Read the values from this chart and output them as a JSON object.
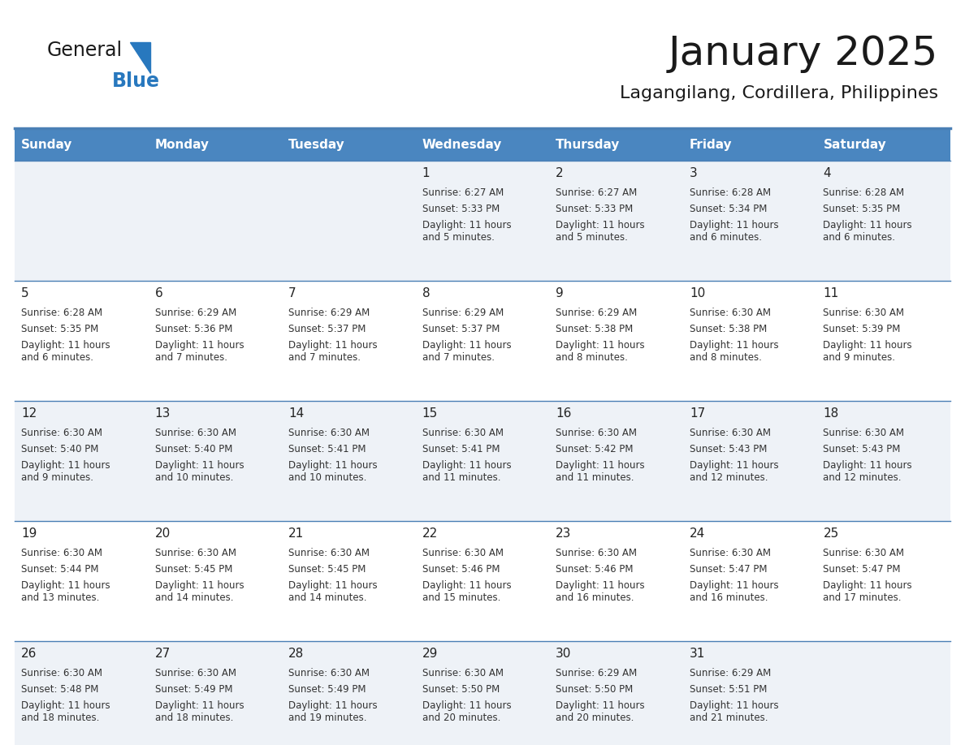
{
  "title": "January 2025",
  "subtitle": "Lagangilang, Cordillera, Philippines",
  "days_of_week": [
    "Sunday",
    "Monday",
    "Tuesday",
    "Wednesday",
    "Thursday",
    "Friday",
    "Saturday"
  ],
  "header_bg": "#4a86c0",
  "header_text": "#ffffff",
  "row_bg_odd": "#eef2f7",
  "row_bg_even": "#ffffff",
  "line_color": "#4a7fb5",
  "cell_text_color": "#333333",
  "day_number_color": "#222222",
  "calendar_data": [
    [
      null,
      null,
      null,
      {
        "day": "1",
        "sunrise": "6:27 AM",
        "sunset": "5:33 PM",
        "daylight": "11 hours\nand 5 minutes."
      },
      {
        "day": "2",
        "sunrise": "6:27 AM",
        "sunset": "5:33 PM",
        "daylight": "11 hours\nand 5 minutes."
      },
      {
        "day": "3",
        "sunrise": "6:28 AM",
        "sunset": "5:34 PM",
        "daylight": "11 hours\nand 6 minutes."
      },
      {
        "day": "4",
        "sunrise": "6:28 AM",
        "sunset": "5:35 PM",
        "daylight": "11 hours\nand 6 minutes."
      }
    ],
    [
      {
        "day": "5",
        "sunrise": "6:28 AM",
        "sunset": "5:35 PM",
        "daylight": "11 hours\nand 6 minutes."
      },
      {
        "day": "6",
        "sunrise": "6:29 AM",
        "sunset": "5:36 PM",
        "daylight": "11 hours\nand 7 minutes."
      },
      {
        "day": "7",
        "sunrise": "6:29 AM",
        "sunset": "5:37 PM",
        "daylight": "11 hours\nand 7 minutes."
      },
      {
        "day": "8",
        "sunrise": "6:29 AM",
        "sunset": "5:37 PM",
        "daylight": "11 hours\nand 7 minutes."
      },
      {
        "day": "9",
        "sunrise": "6:29 AM",
        "sunset": "5:38 PM",
        "daylight": "11 hours\nand 8 minutes."
      },
      {
        "day": "10",
        "sunrise": "6:30 AM",
        "sunset": "5:38 PM",
        "daylight": "11 hours\nand 8 minutes."
      },
      {
        "day": "11",
        "sunrise": "6:30 AM",
        "sunset": "5:39 PM",
        "daylight": "11 hours\nand 9 minutes."
      }
    ],
    [
      {
        "day": "12",
        "sunrise": "6:30 AM",
        "sunset": "5:40 PM",
        "daylight": "11 hours\nand 9 minutes."
      },
      {
        "day": "13",
        "sunrise": "6:30 AM",
        "sunset": "5:40 PM",
        "daylight": "11 hours\nand 10 minutes."
      },
      {
        "day": "14",
        "sunrise": "6:30 AM",
        "sunset": "5:41 PM",
        "daylight": "11 hours\nand 10 minutes."
      },
      {
        "day": "15",
        "sunrise": "6:30 AM",
        "sunset": "5:41 PM",
        "daylight": "11 hours\nand 11 minutes."
      },
      {
        "day": "16",
        "sunrise": "6:30 AM",
        "sunset": "5:42 PM",
        "daylight": "11 hours\nand 11 minutes."
      },
      {
        "day": "17",
        "sunrise": "6:30 AM",
        "sunset": "5:43 PM",
        "daylight": "11 hours\nand 12 minutes."
      },
      {
        "day": "18",
        "sunrise": "6:30 AM",
        "sunset": "5:43 PM",
        "daylight": "11 hours\nand 12 minutes."
      }
    ],
    [
      {
        "day": "19",
        "sunrise": "6:30 AM",
        "sunset": "5:44 PM",
        "daylight": "11 hours\nand 13 minutes."
      },
      {
        "day": "20",
        "sunrise": "6:30 AM",
        "sunset": "5:45 PM",
        "daylight": "11 hours\nand 14 minutes."
      },
      {
        "day": "21",
        "sunrise": "6:30 AM",
        "sunset": "5:45 PM",
        "daylight": "11 hours\nand 14 minutes."
      },
      {
        "day": "22",
        "sunrise": "6:30 AM",
        "sunset": "5:46 PM",
        "daylight": "11 hours\nand 15 minutes."
      },
      {
        "day": "23",
        "sunrise": "6:30 AM",
        "sunset": "5:46 PM",
        "daylight": "11 hours\nand 16 minutes."
      },
      {
        "day": "24",
        "sunrise": "6:30 AM",
        "sunset": "5:47 PM",
        "daylight": "11 hours\nand 16 minutes."
      },
      {
        "day": "25",
        "sunrise": "6:30 AM",
        "sunset": "5:47 PM",
        "daylight": "11 hours\nand 17 minutes."
      }
    ],
    [
      {
        "day": "26",
        "sunrise": "6:30 AM",
        "sunset": "5:48 PM",
        "daylight": "11 hours\nand 18 minutes."
      },
      {
        "day": "27",
        "sunrise": "6:30 AM",
        "sunset": "5:49 PM",
        "daylight": "11 hours\nand 18 minutes."
      },
      {
        "day": "28",
        "sunrise": "6:30 AM",
        "sunset": "5:49 PM",
        "daylight": "11 hours\nand 19 minutes."
      },
      {
        "day": "29",
        "sunrise": "6:30 AM",
        "sunset": "5:50 PM",
        "daylight": "11 hours\nand 20 minutes."
      },
      {
        "day": "30",
        "sunrise": "6:29 AM",
        "sunset": "5:50 PM",
        "daylight": "11 hours\nand 20 minutes."
      },
      {
        "day": "31",
        "sunrise": "6:29 AM",
        "sunset": "5:51 PM",
        "daylight": "11 hours\nand 21 minutes."
      },
      null
    ]
  ],
  "fig_width": 11.88,
  "fig_height": 9.18,
  "logo_text1": "General",
  "logo_text2": "Blue",
  "logo_text1_color": "#1a1a1a",
  "logo_text2_color": "#2878be",
  "logo_triangle_color": "#2878be",
  "title_fontsize": 36,
  "subtitle_fontsize": 16,
  "dow_fontsize": 11,
  "day_num_fontsize": 11,
  "cell_fontsize": 8.5
}
